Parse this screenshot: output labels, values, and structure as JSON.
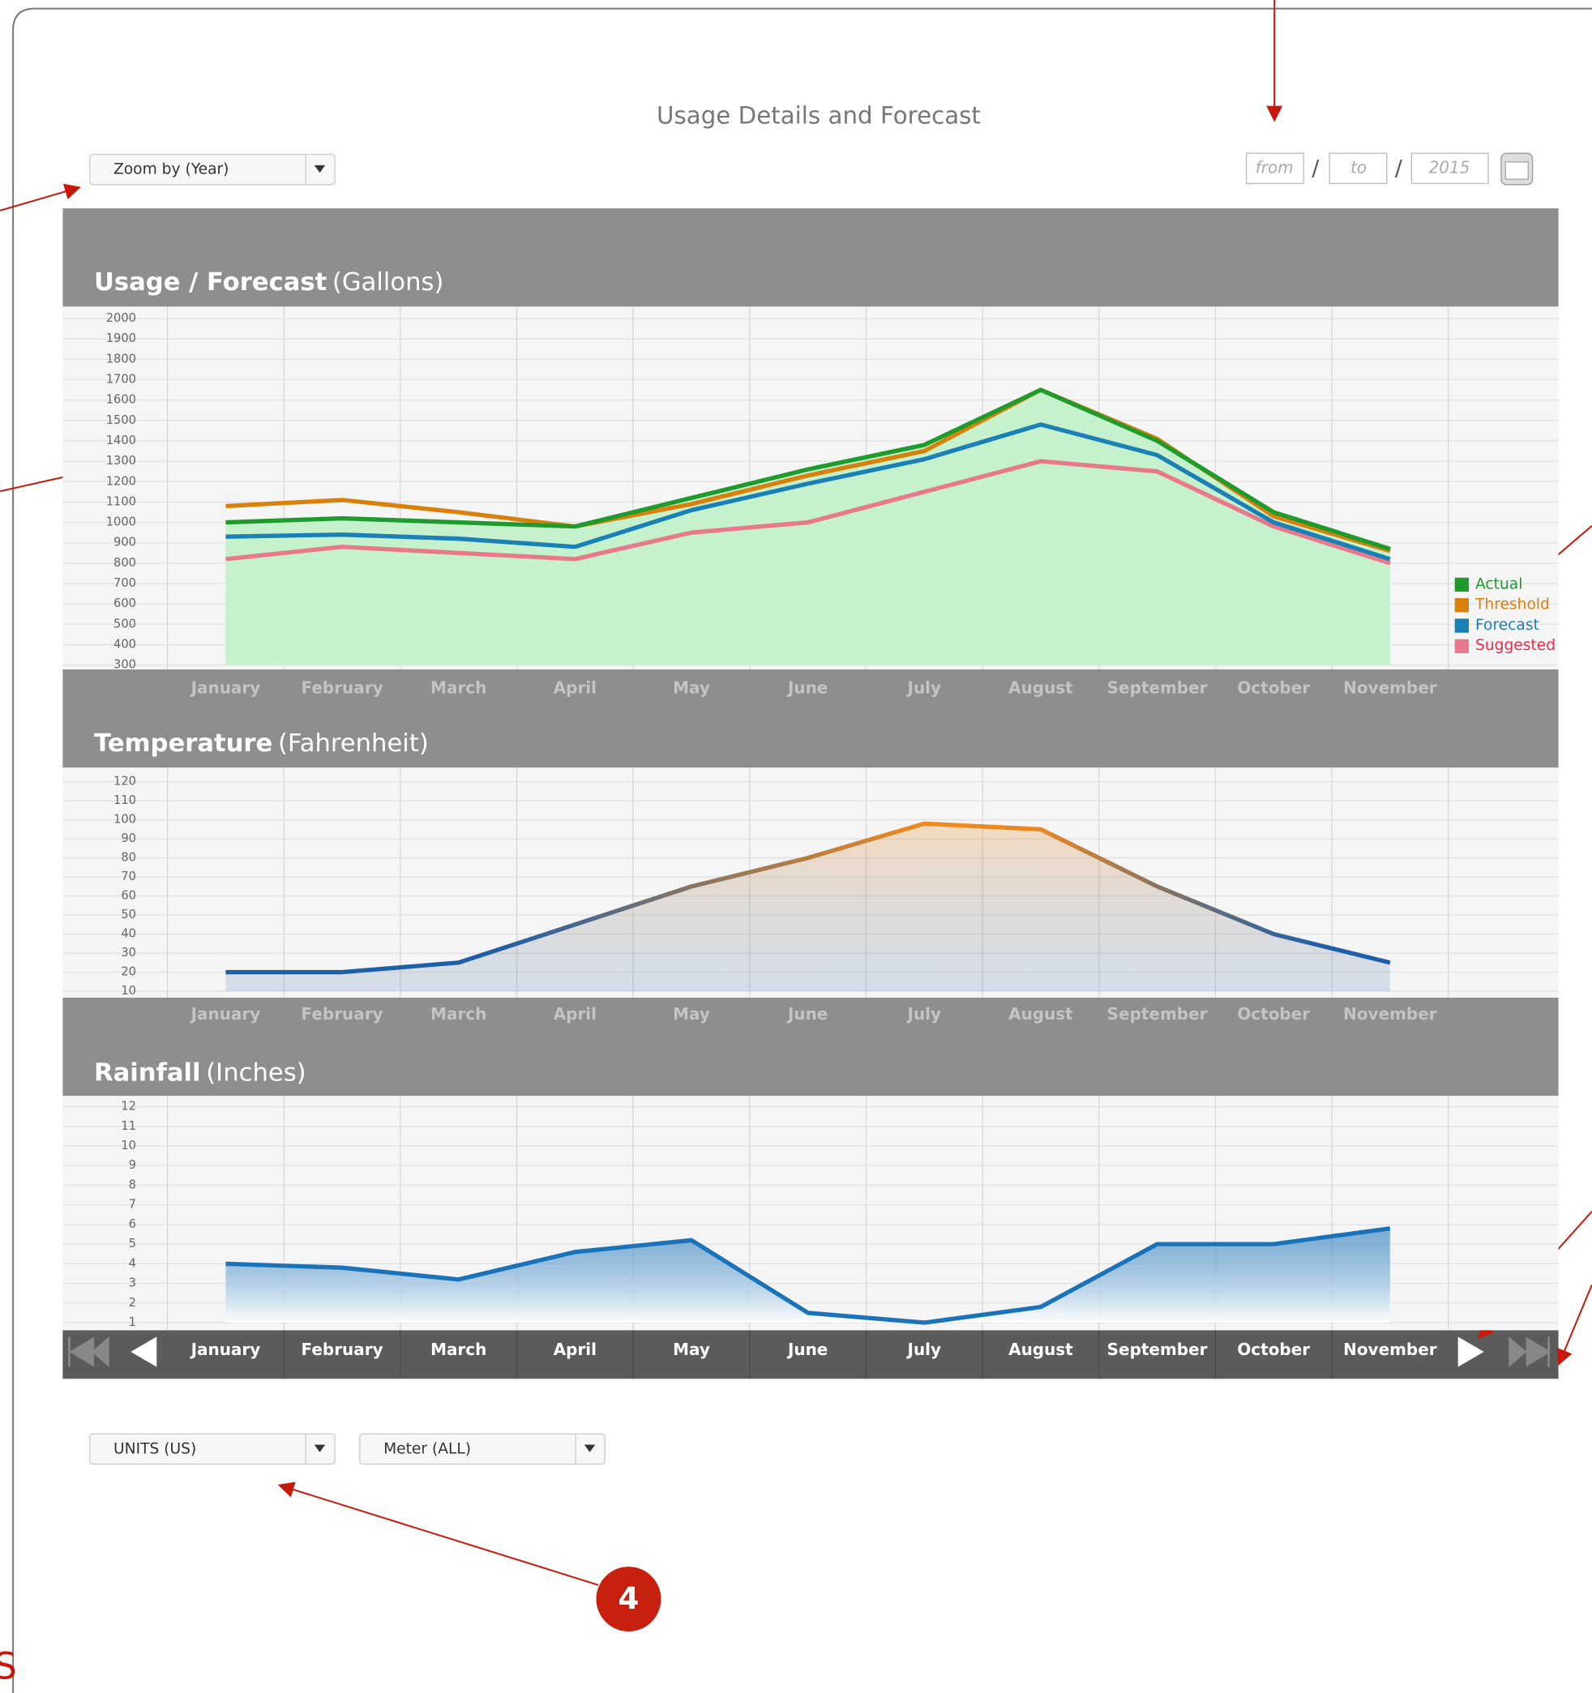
{
  "title": "Usage  Details and Forecast",
  "zoom_select": "Zoom by (Year)",
  "date": {
    "from": "from",
    "to": "to",
    "year": "2015",
    "separator": "/"
  },
  "chart_data": [
    {
      "type": "line",
      "title": "Usage / Forecast",
      "unit": "(Gallons)",
      "categories": [
        "January",
        "February",
        "March",
        "April",
        "May",
        "June",
        "July",
        "August",
        "September",
        "October",
        "November"
      ],
      "ylim": [
        300,
        2000
      ],
      "yticks": [
        300,
        400,
        500,
        600,
        700,
        800,
        900,
        1000,
        1100,
        1200,
        1300,
        1400,
        1500,
        1600,
        1700,
        1800,
        1900,
        2000
      ],
      "grid": true,
      "legend": "right",
      "series": [
        {
          "name": "Actual",
          "color": "#1f9a2c",
          "fill": "#c6f1cd",
          "values": [
            1000,
            1020,
            1000,
            980,
            1120,
            1260,
            1380,
            1650,
            1400,
            1050,
            870
          ]
        },
        {
          "name": "Threshold",
          "color": "#d9800a",
          "values": [
            1080,
            1110,
            1050,
            980,
            1090,
            1230,
            1350,
            1650,
            1410,
            1030,
            860
          ]
        },
        {
          "name": "Forecast",
          "color": "#1b80b6",
          "values": [
            930,
            940,
            920,
            880,
            1060,
            1190,
            1310,
            1480,
            1330,
            1000,
            820
          ]
        },
        {
          "name": "Suggested",
          "color": "#e8788a",
          "text_color": "#e0304f",
          "values": [
            820,
            880,
            850,
            820,
            950,
            1000,
            1150,
            1300,
            1250,
            980,
            800
          ]
        }
      ]
    },
    {
      "type": "area",
      "title": "Temperature",
      "unit": "(Fahrenheit)",
      "categories": [
        "January",
        "February",
        "March",
        "April",
        "May",
        "June",
        "July",
        "August",
        "September",
        "October",
        "November"
      ],
      "ylim": [
        10,
        120
      ],
      "yticks": [
        10,
        20,
        30,
        40,
        50,
        60,
        70,
        80,
        90,
        100,
        110,
        120
      ],
      "grid": true,
      "colors": [
        "#1f5fa8",
        "#f08a1c"
      ],
      "values": [
        20,
        20,
        25,
        45,
        65,
        80,
        98,
        95,
        65,
        40,
        25
      ]
    },
    {
      "type": "area",
      "title": "Rainfall",
      "unit": "(Inches)",
      "categories": [
        "January",
        "February",
        "March",
        "April",
        "May",
        "June",
        "July",
        "August",
        "September",
        "October",
        "November"
      ],
      "ylim": [
        1,
        12
      ],
      "yticks": [
        1,
        2,
        3,
        4,
        5,
        6,
        7,
        8,
        9,
        10,
        11,
        12
      ],
      "grid": true,
      "colors": [
        "#1a72b8",
        "#ffffff"
      ],
      "values": [
        4,
        3.8,
        3.2,
        4.6,
        5.2,
        1.5,
        1,
        1.8,
        5,
        5,
        5.8
      ]
    }
  ],
  "units_select": "UNITS (US)",
  "meter_select": "Meter (ALL)",
  "callout": "4",
  "edge_text": "S"
}
